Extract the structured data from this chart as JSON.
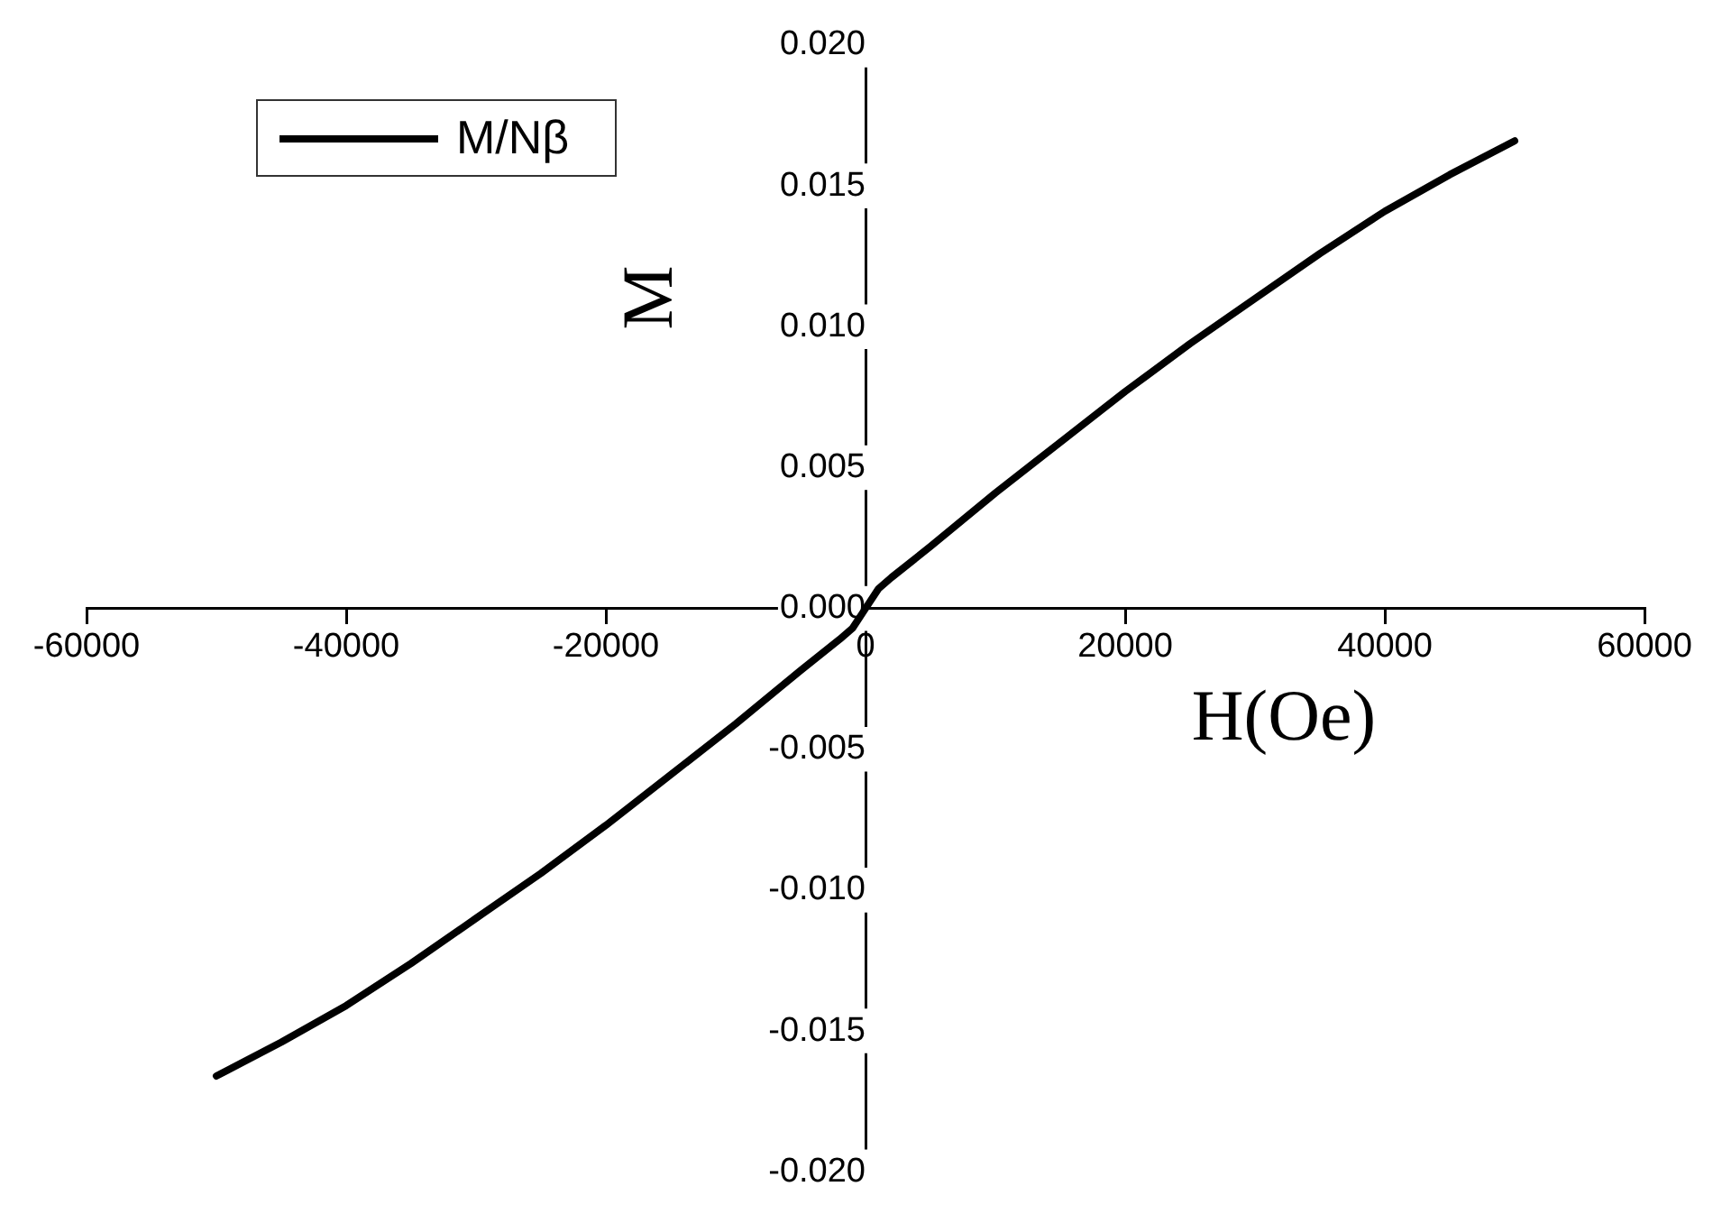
{
  "chart_data": {
    "type": "line",
    "xlabel": "H(Oe)",
    "ylabel": "M",
    "x": [
      -50000,
      -45000,
      -40000,
      -35000,
      -30000,
      -25000,
      -20000,
      -15000,
      -10000,
      -5000,
      -2000,
      -1000,
      0,
      1000,
      2000,
      5000,
      10000,
      15000,
      20000,
      25000,
      30000,
      35000,
      40000,
      45000,
      50000
    ],
    "series": [
      {
        "name": "M/Nβ",
        "color": "#000000",
        "values": [
          -0.0166,
          -0.0154,
          -0.0141,
          -0.0126,
          -0.011,
          -0.0094,
          -0.0077,
          -0.0059,
          -0.0041,
          -0.0022,
          -0.0011,
          -0.0007,
          0,
          0.0007,
          0.0011,
          0.0022,
          0.0041,
          0.0059,
          0.0077,
          0.0094,
          0.011,
          0.0126,
          0.0141,
          0.0154,
          0.0166
        ]
      }
    ],
    "xlim": [
      -60000,
      60000
    ],
    "xticks": [
      -60000,
      -40000,
      -20000,
      0,
      20000,
      40000,
      60000
    ],
    "ylim": [
      -0.02,
      0.02
    ],
    "yticks": [
      {
        "value": -0.02,
        "label": "-0.020"
      },
      {
        "value": -0.015,
        "label": "-0.015"
      },
      {
        "value": -0.01,
        "label": "-0.010"
      },
      {
        "value": -0.005,
        "label": "-0.005"
      },
      {
        "value": 0,
        "label": "0.000"
      },
      {
        "value": 0.005,
        "label": "0.005"
      },
      {
        "value": 0.01,
        "label": "0.010"
      },
      {
        "value": 0.015,
        "label": "0.015"
      },
      {
        "value": 0.02,
        "label": "0.020"
      }
    ],
    "legend": "top left",
    "grid": false,
    "marker": "none",
    "line_style": "solid"
  }
}
